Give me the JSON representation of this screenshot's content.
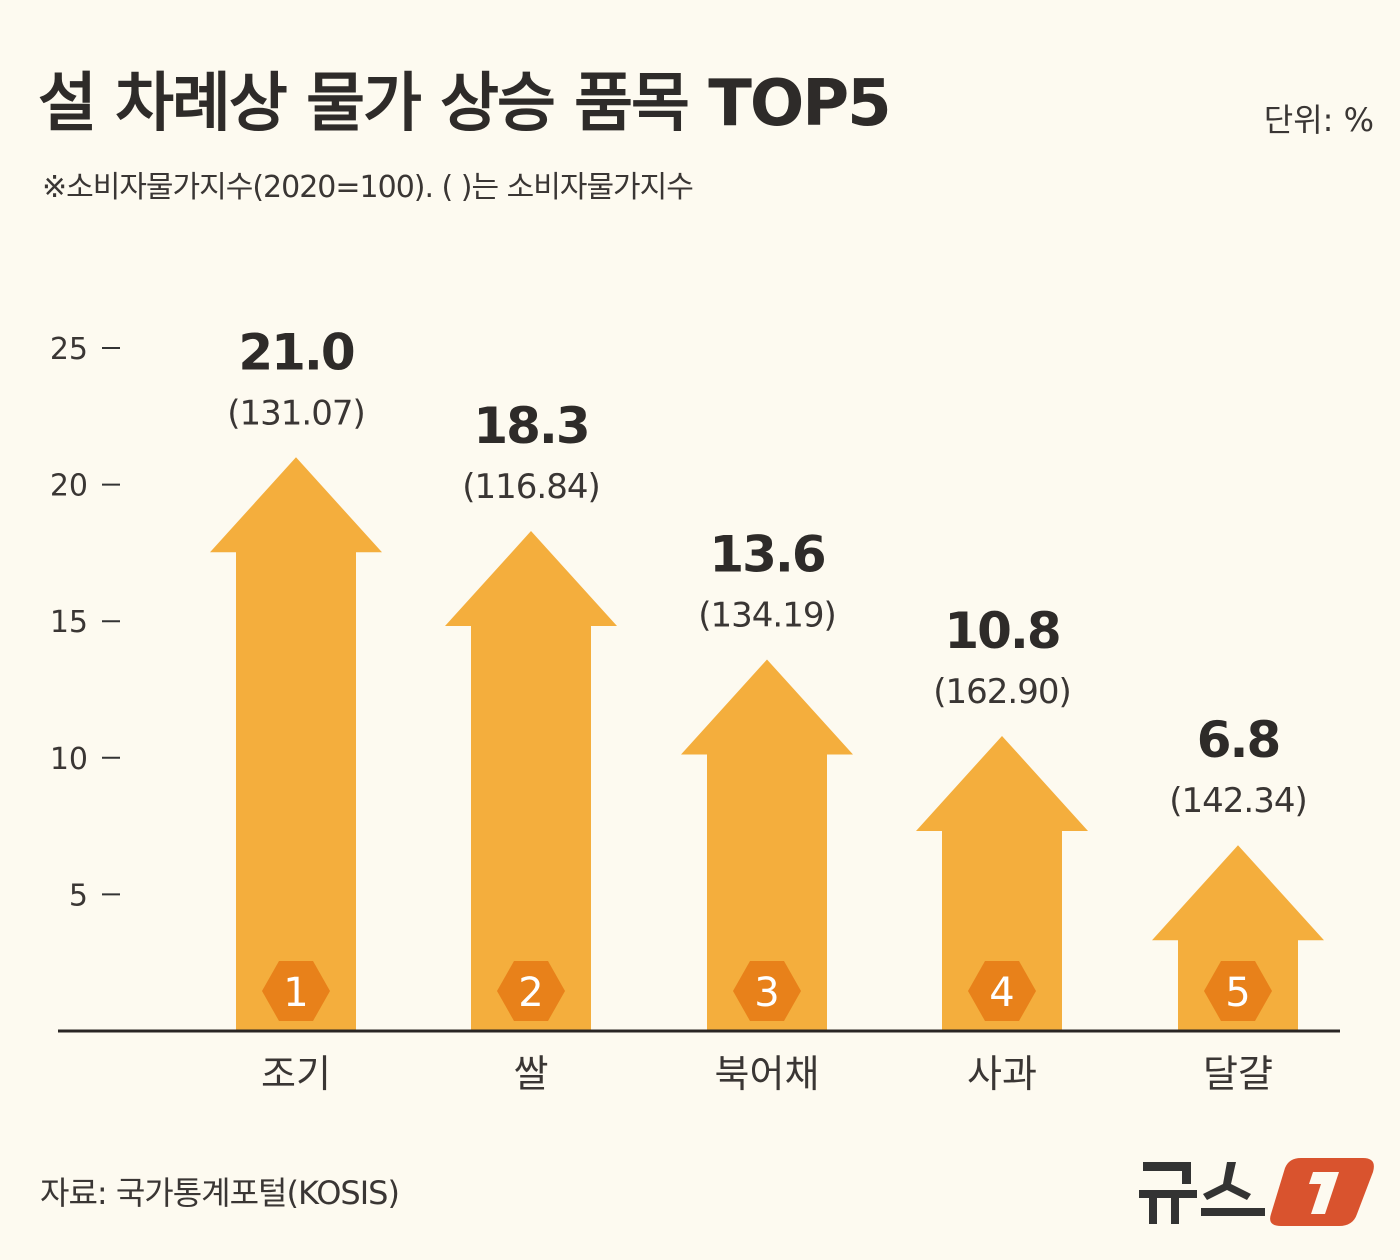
{
  "header": {
    "title": "설 차례상 물가 상승 품목 TOP5",
    "subtitle": "※소비자물가지수(2020=100). ( )는 소비자물가지수",
    "unit": "단위: %"
  },
  "footer": {
    "source": "자료: 국가통계포털(KOSIS)",
    "logo_text": "뉴스1"
  },
  "colors": {
    "background": "#fdfaf0",
    "arrow": "#f4ae3d",
    "rank_badge": "#e8811a",
    "text": "#2e2b29",
    "logo_red": "#d9532e"
  },
  "chart_data": {
    "type": "bar",
    "mark": "up-arrow",
    "categories": [
      "조기",
      "쌀",
      "북어채",
      "사과",
      "달걀"
    ],
    "values": [
      21.0,
      18.3,
      13.6,
      10.8,
      6.8
    ],
    "value_labels": [
      "21.0",
      "18.3",
      "13.6",
      "10.8",
      "6.8"
    ],
    "index_labels": [
      "(131.07)",
      "(116.84)",
      "(134.19)",
      "(162.90)",
      "(142.34)"
    ],
    "ranks": [
      "1",
      "2",
      "3",
      "4",
      "5"
    ],
    "ylim": [
      0,
      25
    ],
    "yticks": [
      5,
      10,
      15,
      20,
      25
    ],
    "ytick_labels": [
      "5",
      "10",
      "15",
      "20",
      "25"
    ],
    "grid": false,
    "legend": "none"
  }
}
